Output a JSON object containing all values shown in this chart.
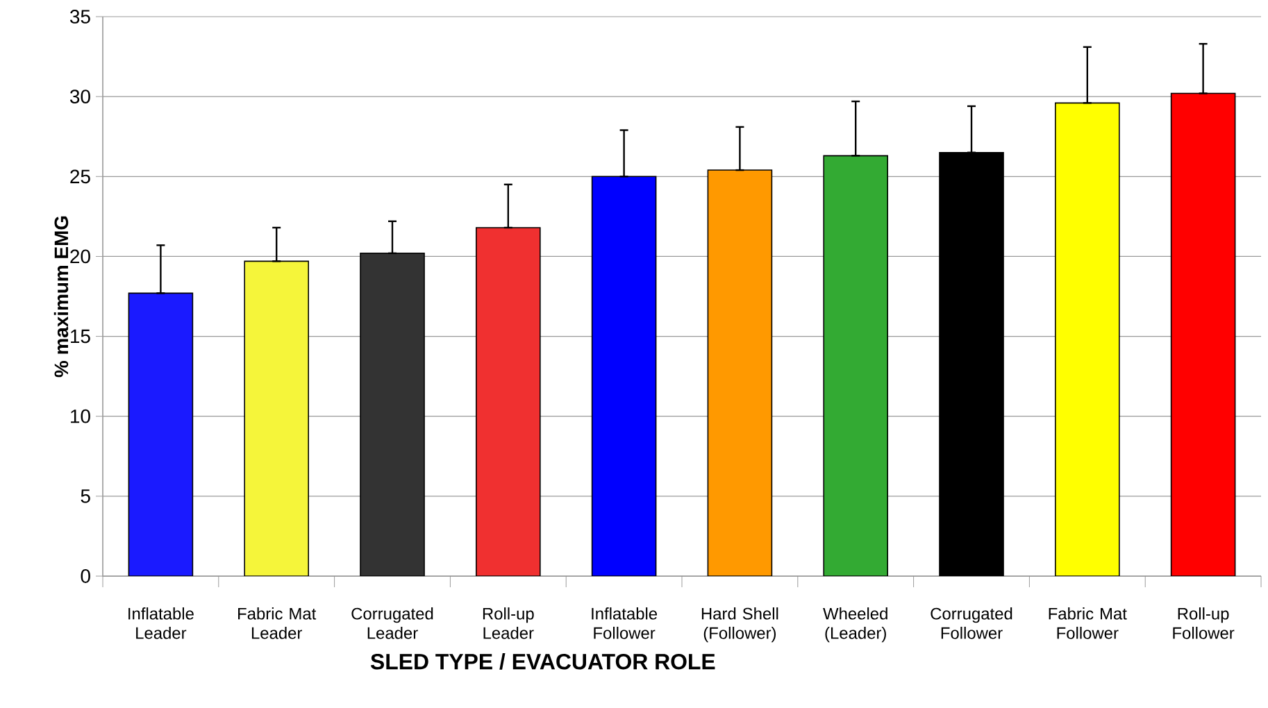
{
  "chart_data": {
    "type": "bar",
    "xlabel": "SLED TYPE / EVACUATOR ROLE",
    "ylabel": "% maximum EMG",
    "categories": [
      "Inflatable Leader",
      "Fabric Mat Leader",
      "Corrugated Leader",
      "Roll-up Leader",
      "Inflatable Follower",
      "Hard Shell (Follower)",
      "Wheeled (Leader)",
      "Corrugated Follower",
      "Fabric Mat Follower",
      "Roll-up Follower"
    ],
    "values": [
      17.7,
      19.7,
      20.2,
      21.8,
      25.0,
      25.4,
      26.3,
      26.5,
      29.6,
      30.2
    ],
    "errors": [
      [
        17.7,
        20.7
      ],
      [
        19.7,
        21.8
      ],
      [
        20.2,
        22.2
      ],
      [
        21.8,
        24.5
      ],
      [
        25.0,
        27.9
      ],
      [
        25.4,
        28.1
      ],
      [
        26.3,
        29.7
      ],
      [
        26.5,
        29.4
      ],
      [
        29.6,
        33.1
      ],
      [
        30.2,
        33.3
      ]
    ],
    "colors": [
      "#1a1aff",
      "#f5f53a",
      "#333333",
      "#f03030",
      "#0000ff",
      "#ff9900",
      "#33aa33",
      "#000000",
      "#ffff00",
      "#ff0000"
    ],
    "ylim": [
      0,
      35
    ],
    "yticks": [
      0,
      5,
      10,
      15,
      20,
      25,
      30,
      35
    ],
    "grid": "y"
  }
}
